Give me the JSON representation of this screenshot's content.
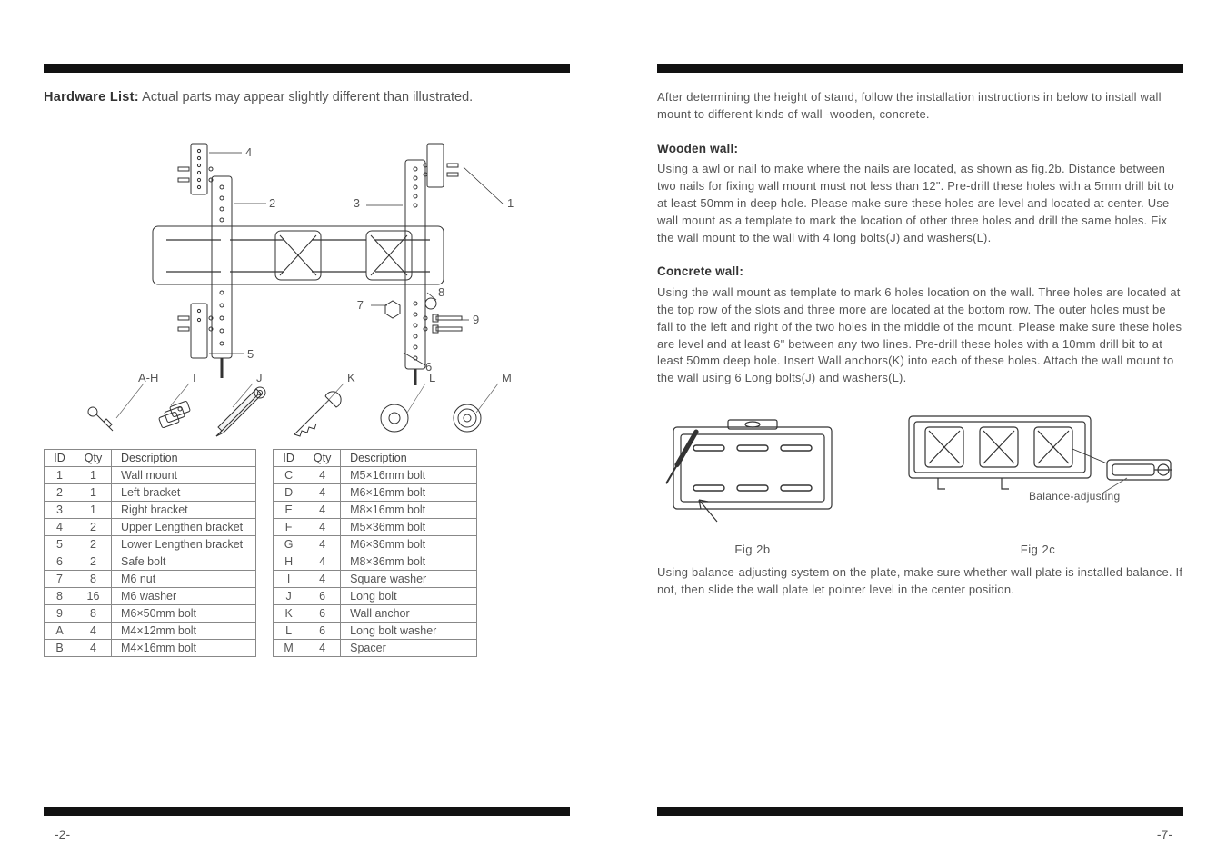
{
  "left": {
    "title_bold": "Hardware List:",
    "title_rest": " Actual parts may appear slightly different than illustrated.",
    "diagram_labels": [
      "1",
      "2",
      "3",
      "4",
      "5",
      "6",
      "7",
      "8",
      "9"
    ],
    "hw_icons": [
      {
        "id": "A-H",
        "name": "short-bolt-icon"
      },
      {
        "id": "I",
        "name": "washer-stack-icon"
      },
      {
        "id": "J",
        "name": "long-bolt-icon"
      },
      {
        "id": "K",
        "name": "anchor-icon"
      },
      {
        "id": "L",
        "name": "flat-washer-icon"
      },
      {
        "id": "M",
        "name": "spacer-icon"
      }
    ],
    "table1": {
      "columns": [
        "ID",
        "Qty",
        "Description"
      ],
      "rows": [
        [
          "1",
          "1",
          "Wall mount"
        ],
        [
          "2",
          "1",
          "Left bracket"
        ],
        [
          "3",
          "1",
          "Right bracket"
        ],
        [
          "4",
          "2",
          "Upper Lengthen bracket"
        ],
        [
          "5",
          "2",
          "Lower Lengthen bracket"
        ],
        [
          "6",
          "2",
          "Safe bolt"
        ],
        [
          "7",
          "8",
          "M6 nut"
        ],
        [
          "8",
          "16",
          "M6 washer"
        ],
        [
          "9",
          "8",
          "M6×50mm bolt"
        ],
        [
          "A",
          "4",
          "M4×12mm bolt"
        ],
        [
          "B",
          "4",
          "M4×16mm bolt"
        ]
      ]
    },
    "table2": {
      "columns": [
        "ID",
        "Qty",
        "Description"
      ],
      "rows": [
        [
          "C",
          "4",
          "M5×16mm bolt"
        ],
        [
          "D",
          "4",
          "M6×16mm bolt"
        ],
        [
          "E",
          "4",
          "M8×16mm bolt"
        ],
        [
          "F",
          "4",
          "M5×36mm bolt"
        ],
        [
          "G",
          "4",
          "M6×36mm bolt"
        ],
        [
          "H",
          "4",
          "M8×36mm bolt"
        ],
        [
          "I",
          "4",
          "Square washer"
        ],
        [
          "J",
          "6",
          "Long bolt"
        ],
        [
          "K",
          "6",
          "Wall anchor"
        ],
        [
          "L",
          "6",
          "Long bolt washer"
        ],
        [
          "M",
          "4",
          "Spacer"
        ]
      ]
    },
    "pagenum": "-2-"
  },
  "right": {
    "intro": "After determining the height of stand, follow the installation instructions in below to install wall mount to different kinds of wall -wooden, concrete.",
    "wooden_h": "Wooden wall:",
    "wooden_p": "Using a awl or nail to make where the nails are located, as shown as fig.2b. Distance between two  nails for fixing wall mount must not less than 12\". Pre-drill these holes with a 5mm drill  bit to  at least 50mm in deep hole. Please make sure these holes are level and located at center. Use wall mount as a template to mark the location of other three holes and drill the same holes. Fix the wall mount to the wall with 4 long bolts(J) and washers(L).",
    "concrete_h": "Concrete wall:",
    "concrete_p": "Using the wall mount as template to mark 6 holes location on the wall. Three holes are located at the top row of the slots and three more are located at the bottom row. The outer holes must be fall to the left and right of the two holes in the middle of the mount. Please make sure these holes are level and at least 6\" between any two lines. Pre-drill these holes with a 10mm drill bit to at least 50mm deep hole. Insert Wall anchors(K) into each of these holes. Attach the wall mount to the wall using 6 Long bolts(J) and washers(L).",
    "fig2b_cap": "Fig  2b",
    "fig2c_cap": "Fig  2c",
    "balance_label": "Balance-adjusting",
    "after_figs": "Using balance-adjusting system on the plate, make sure whether wall plate is installed balance. If not, then slide the wall plate let pointer level in the center position.",
    "pagenum": "-7-"
  },
  "colors": {
    "rule": "#111111",
    "text": "#555555",
    "stroke": "#333333"
  }
}
